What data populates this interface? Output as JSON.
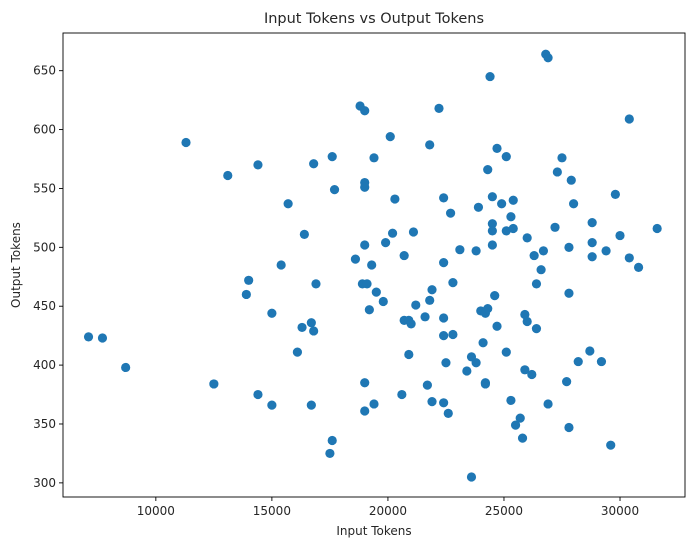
{
  "chart_data": {
    "type": "scatter",
    "title": "Input Tokens vs Output Tokens",
    "xlabel": "Input Tokens",
    "ylabel": "Output Tokens",
    "xlim": [
      6000,
      32800
    ],
    "ylim": [
      288,
      682
    ],
    "xticks": [
      10000,
      15000,
      20000,
      25000,
      30000
    ],
    "yticks": [
      300,
      350,
      400,
      450,
      500,
      550,
      600,
      650
    ],
    "grid": false,
    "legend": "none",
    "color": "#1f77b4",
    "points": [
      [
        7100,
        424
      ],
      [
        7700,
        423
      ],
      [
        8700,
        398
      ],
      [
        11300,
        589
      ],
      [
        12500,
        384
      ],
      [
        13100,
        561
      ],
      [
        14000,
        472
      ],
      [
        13900,
        460
      ],
      [
        14400,
        570
      ],
      [
        14400,
        375
      ],
      [
        15000,
        444
      ],
      [
        15000,
        366
      ],
      [
        15400,
        485
      ],
      [
        15700,
        537
      ],
      [
        16100,
        411
      ],
      [
        16300,
        432
      ],
      [
        16400,
        511
      ],
      [
        16700,
        436
      ],
      [
        16800,
        571
      ],
      [
        16900,
        469
      ],
      [
        16800,
        429
      ],
      [
        16700,
        366
      ],
      [
        17500,
        325
      ],
      [
        17600,
        336
      ],
      [
        17600,
        577
      ],
      [
        17700,
        549
      ],
      [
        18600,
        490
      ],
      [
        18800,
        620
      ],
      [
        18900,
        469
      ],
      [
        19000,
        616
      ],
      [
        19000,
        551
      ],
      [
        19000,
        555
      ],
      [
        19000,
        502
      ],
      [
        19100,
        469
      ],
      [
        19200,
        447
      ],
      [
        19300,
        485
      ],
      [
        19400,
        576
      ],
      [
        19500,
        462
      ],
      [
        19000,
        385
      ],
      [
        19000,
        361
      ],
      [
        19400,
        367
      ],
      [
        19800,
        454
      ],
      [
        19900,
        504
      ],
      [
        20100,
        594
      ],
      [
        20200,
        512
      ],
      [
        20300,
        541
      ],
      [
        20600,
        375
      ],
      [
        20700,
        493
      ],
      [
        20700,
        438
      ],
      [
        20900,
        438
      ],
      [
        20900,
        409
      ],
      [
        21000,
        435
      ],
      [
        21100,
        513
      ],
      [
        21200,
        451
      ],
      [
        21600,
        441
      ],
      [
        21700,
        383
      ],
      [
        21800,
        455
      ],
      [
        21900,
        464
      ],
      [
        21800,
        587
      ],
      [
        21900,
        369
      ],
      [
        22200,
        618
      ],
      [
        22400,
        542
      ],
      [
        22400,
        487
      ],
      [
        22400,
        440
      ],
      [
        22400,
        425
      ],
      [
        22400,
        368
      ],
      [
        22500,
        402
      ],
      [
        22600,
        359
      ],
      [
        22700,
        529
      ],
      [
        22800,
        470
      ],
      [
        22800,
        426
      ],
      [
        23100,
        498
      ],
      [
        23400,
        395
      ],
      [
        23600,
        407
      ],
      [
        23600,
        305
      ],
      [
        23800,
        402
      ],
      [
        23800,
        497
      ],
      [
        23900,
        534
      ],
      [
        24000,
        446
      ],
      [
        24100,
        419
      ],
      [
        24200,
        444
      ],
      [
        24200,
        385
      ],
      [
        24200,
        384
      ],
      [
        24300,
        448
      ],
      [
        24300,
        566
      ],
      [
        24400,
        645
      ],
      [
        24500,
        543
      ],
      [
        24500,
        520
      ],
      [
        24500,
        514
      ],
      [
        24500,
        502
      ],
      [
        24600,
        459
      ],
      [
        24700,
        584
      ],
      [
        24700,
        433
      ],
      [
        24900,
        537
      ],
      [
        25100,
        514
      ],
      [
        25100,
        411
      ],
      [
        25100,
        577
      ],
      [
        25300,
        526
      ],
      [
        25300,
        370
      ],
      [
        25400,
        540
      ],
      [
        25400,
        516
      ],
      [
        25500,
        349
      ],
      [
        25700,
        355
      ],
      [
        25800,
        338
      ],
      [
        25900,
        443
      ],
      [
        25900,
        396
      ],
      [
        26000,
        437
      ],
      [
        26000,
        508
      ],
      [
        26200,
        392
      ],
      [
        26300,
        493
      ],
      [
        26400,
        469
      ],
      [
        26400,
        431
      ],
      [
        26600,
        481
      ],
      [
        26700,
        497
      ],
      [
        26800,
        664
      ],
      [
        26900,
        661
      ],
      [
        26900,
        367
      ],
      [
        27200,
        517
      ],
      [
        27300,
        564
      ],
      [
        27500,
        576
      ],
      [
        27700,
        386
      ],
      [
        27800,
        500
      ],
      [
        27800,
        461
      ],
      [
        27800,
        347
      ],
      [
        27900,
        557
      ],
      [
        28000,
        537
      ],
      [
        28200,
        403
      ],
      [
        28700,
        412
      ],
      [
        28800,
        492
      ],
      [
        28800,
        521
      ],
      [
        28800,
        504
      ],
      [
        29200,
        403
      ],
      [
        29400,
        497
      ],
      [
        29600,
        332
      ],
      [
        29800,
        545
      ],
      [
        30000,
        510
      ],
      [
        30400,
        609
      ],
      [
        30400,
        491
      ],
      [
        30800,
        483
      ],
      [
        31600,
        516
      ]
    ]
  }
}
